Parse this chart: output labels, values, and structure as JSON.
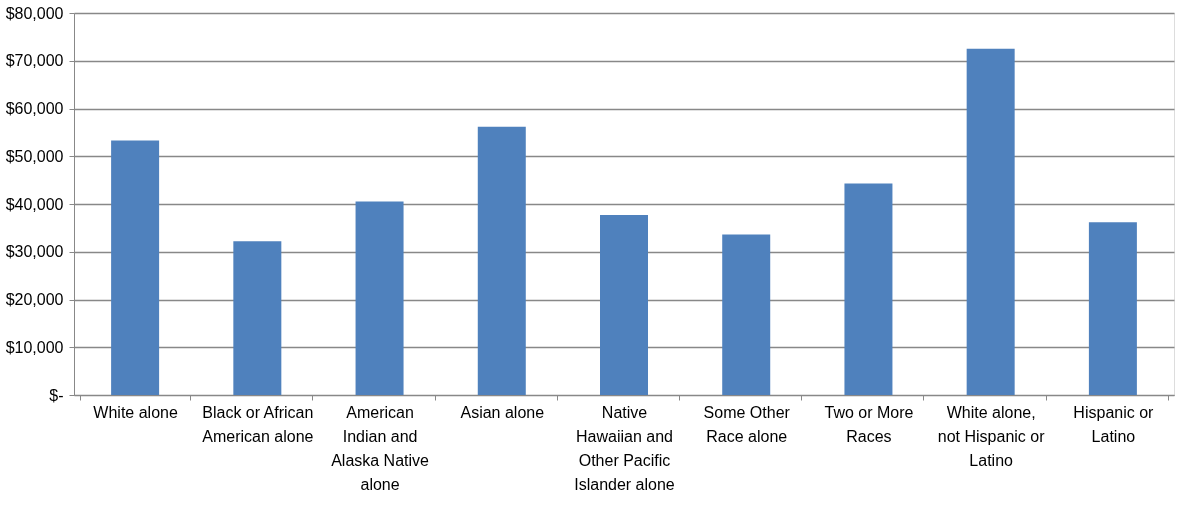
{
  "chart_data": {
    "type": "bar",
    "categories": [
      "White alone",
      "Black or African\nAmerican alone",
      "American\nIndian and\nAlaska Native\nalone",
      "Asian alone",
      "Native\nHawaiian and\nOther Pacific\nIslander alone",
      "Some Other\nRace alone",
      "Two or More\nRaces",
      "White alone,\nnot Hispanic or\nLatino",
      "Hispanic or\nLatino"
    ],
    "values": [
      53300,
      32200,
      40500,
      56200,
      37700,
      33600,
      44300,
      72500,
      36200
    ],
    "color": "#4f81bd",
    "ylim": [
      0,
      80000
    ],
    "yticks": [
      {
        "value": 0,
        "label": "$-"
      },
      {
        "value": 10000,
        "label": "$10,000"
      },
      {
        "value": 20000,
        "label": "$20,000"
      },
      {
        "value": 30000,
        "label": "$30,000"
      },
      {
        "value": 40000,
        "label": "$40,000"
      },
      {
        "value": 50000,
        "label": "$50,000"
      },
      {
        "value": 60000,
        "label": "$60,000"
      },
      {
        "value": 70000,
        "label": "$70,000"
      },
      {
        "value": 80000,
        "label": "$80,000"
      }
    ],
    "grid": "y"
  }
}
